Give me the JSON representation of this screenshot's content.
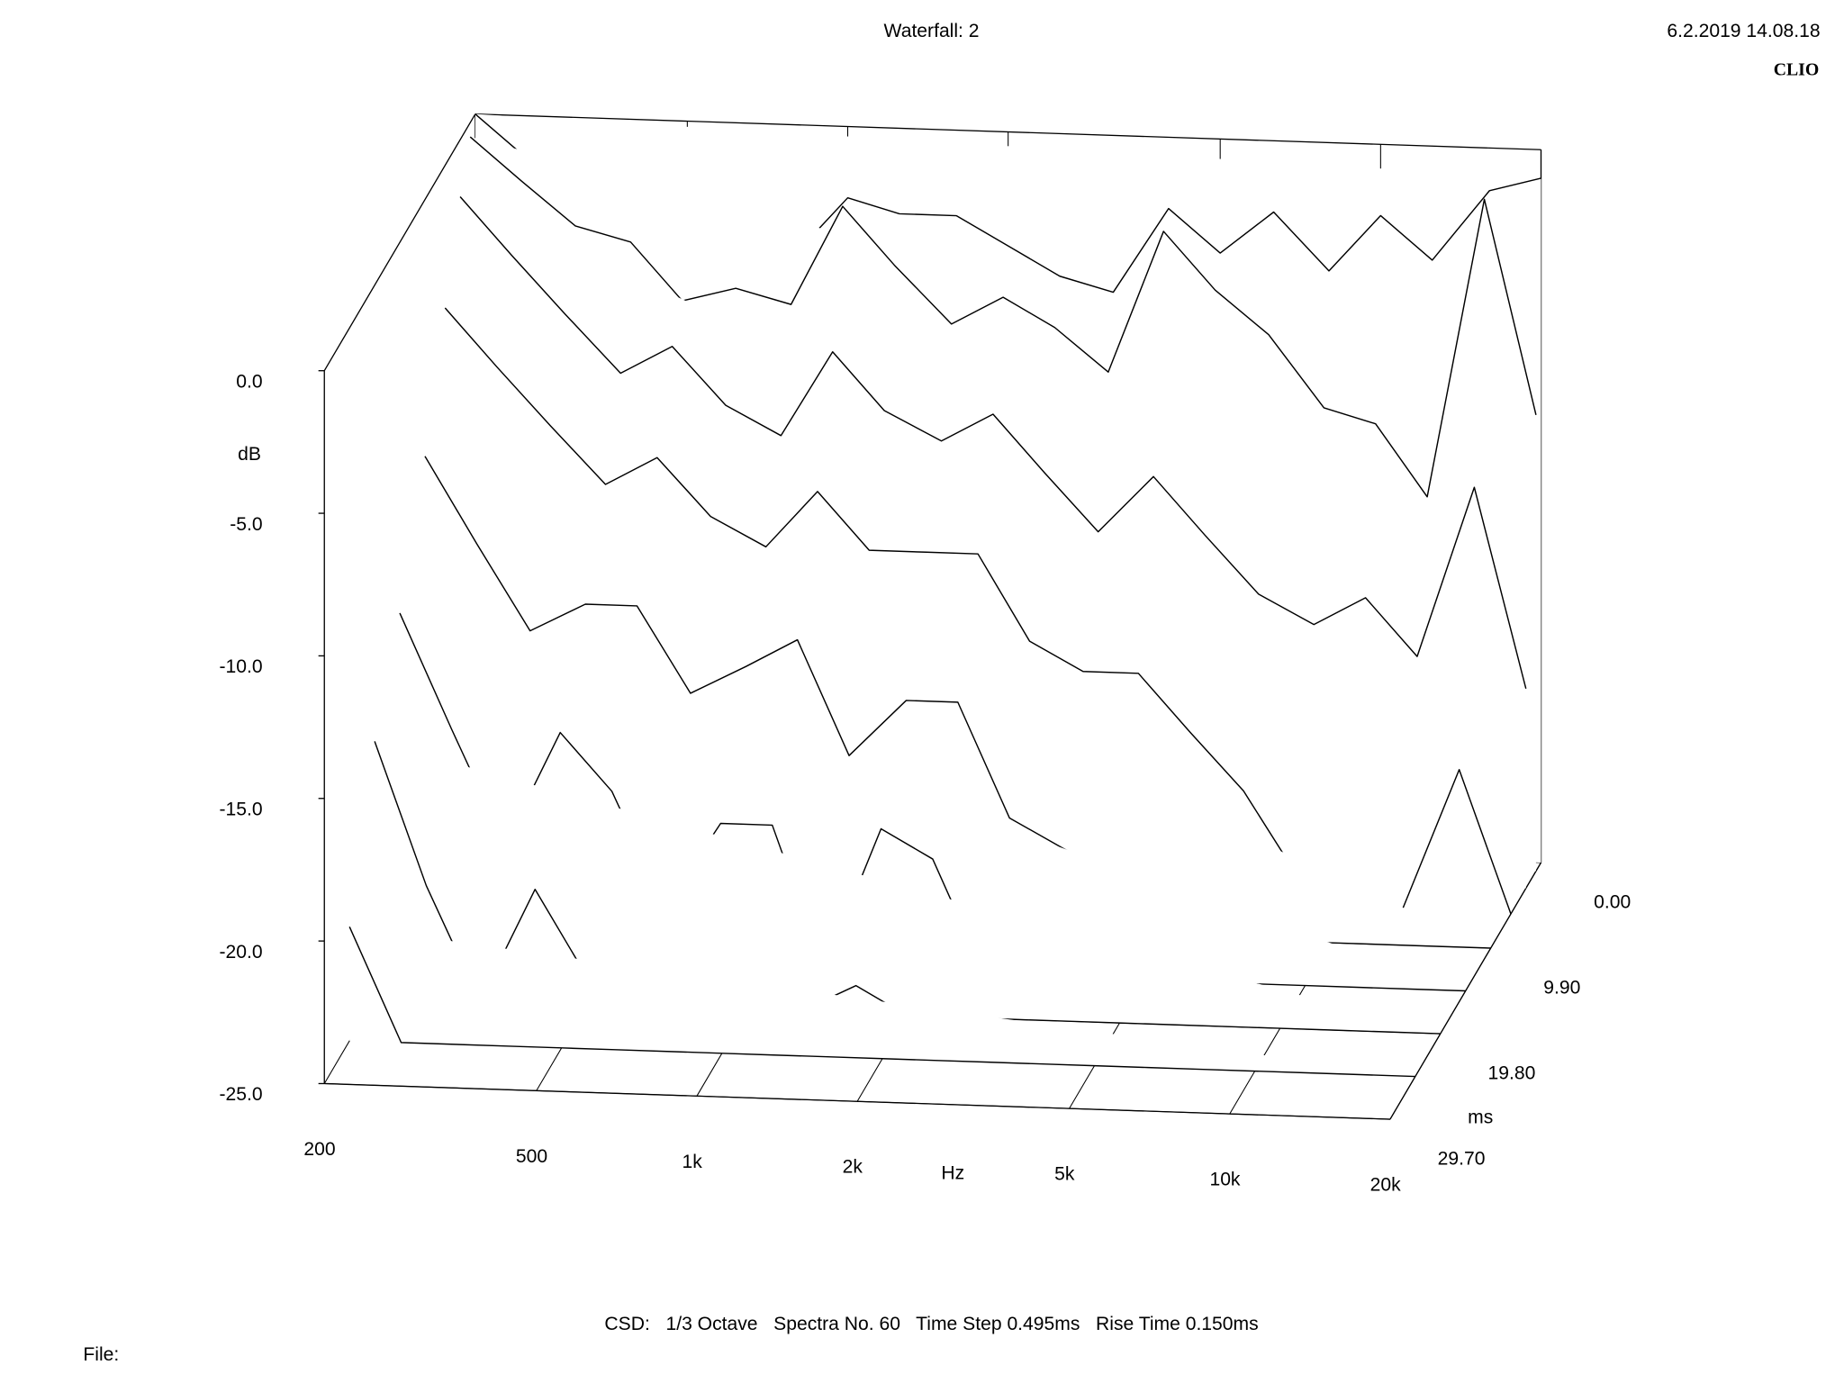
{
  "chart_data": {
    "type": "waterfall",
    "title": "Waterfall: 2",
    "date": "6.2.2019 14.08.18",
    "brand": "CLIO",
    "x_label": "Hz",
    "y_label": "dB",
    "z_label": "ms",
    "footer": "CSD:   1/3 Octave   Spectra No. 60   Time Step 0.495ms   Rise Time 0.150ms",
    "file_label": "File:",
    "log_x": true,
    "xlim": [
      200,
      20000
    ],
    "xticks": [
      200,
      500,
      {
        "value": 1000,
        "label": "1k"
      },
      {
        "value": 2000,
        "label": "2k"
      },
      {
        "value": 5000,
        "label": "5k"
      },
      {
        "value": 10000,
        "label": "10k"
      },
      {
        "value": 20000,
        "label": "20k"
      }
    ],
    "ylim": [
      -25,
      0
    ],
    "yticks": [
      {
        "value": 0,
        "label": "0.0"
      },
      {
        "value": -5,
        "label": "-5.0"
      },
      {
        "value": -10,
        "label": "-10.0"
      },
      {
        "value": -15,
        "label": "-15.0"
      },
      {
        "value": -20,
        "label": "-20.0"
      },
      {
        "value": -25,
        "label": "-25.0"
      }
    ],
    "zlim": [
      0,
      29.7
    ],
    "zticks": [
      {
        "value": 0,
        "label": "0.00"
      },
      {
        "value": 9.9,
        "label": "9.90"
      },
      {
        "value": 19.8,
        "label": "19.80"
      },
      {
        "value": 29.7,
        "label": "29.70"
      }
    ],
    "frequencies": [
      200,
      250,
      315,
      400,
      500,
      630,
      800,
      1000,
      1250,
      1600,
      2000,
      2500,
      3150,
      4000,
      5000,
      6300,
      8000,
      10000,
      12500,
      16000,
      20000
    ],
    "spectra": [
      {
        "time": 0,
        "values": [
          0,
          -1.5,
          -2.5,
          -4.5,
          -4,
          -5,
          -4.5,
          -2.5,
          -3,
          -3,
          -4,
          -5,
          -5.5,
          -2.5,
          -4,
          -2.5,
          -4.5,
          -2.5,
          -4,
          -1.5,
          -1
        ]
      },
      {
        "time": 0.99,
        "values": [
          -0.5,
          -2,
          -3.5,
          -4,
          -6,
          -5.5,
          -6,
          -2.5,
          -4.5,
          -6.5,
          -5.5,
          -6.5,
          -8,
          -3,
          -5,
          -6.5,
          -9,
          -9.5,
          -12,
          -1.5,
          -9
        ]
      },
      {
        "time": 2.97,
        "values": [
          -2,
          -4,
          -6,
          -8,
          -7,
          -9,
          -10,
          -7,
          -9,
          -10,
          -9,
          -11,
          -13,
          -11,
          -13,
          -15,
          -16,
          -15,
          -17,
          -11,
          -18
        ]
      },
      {
        "time": 5.94,
        "values": [
          -5,
          -7,
          -9,
          -11,
          -10,
          -12,
          -13,
          -11,
          -13,
          -13,
          -13,
          -16,
          -17,
          -17,
          -19,
          -21,
          -24,
          -25,
          -25,
          -20,
          -25
        ]
      },
      {
        "time": 9.9,
        "values": [
          -9,
          -12,
          -15,
          -14,
          -14,
          -17,
          -16,
          -15,
          -19,
          -17,
          -17,
          -21,
          -22,
          -23,
          -25,
          -25,
          -25,
          -25,
          -25,
          -25,
          -25
        ]
      },
      {
        "time": 14.85,
        "values": [
          -13,
          -17,
          -21,
          -17,
          -19,
          -23,
          -20,
          -20,
          -25,
          -20,
          -21,
          -25,
          -25,
          -25,
          -25,
          -25,
          -25,
          -25,
          -25,
          -25,
          -25
        ]
      },
      {
        "time": 19.8,
        "values": [
          -16,
          -21,
          -25,
          -21,
          -24,
          -25,
          -24,
          -25,
          -25,
          -24,
          -25,
          -25,
          -25,
          -25,
          -25,
          -25,
          -25,
          -25,
          -25,
          -25,
          -25
        ]
      },
      {
        "time": 24.75,
        "values": [
          -21,
          -25,
          -25,
          -25,
          -25,
          -25,
          -25,
          -25,
          -25,
          -25,
          -25,
          -25,
          -25,
          -25,
          -25,
          -25,
          -25,
          -25,
          -25,
          -25,
          -25
        ]
      }
    ]
  }
}
